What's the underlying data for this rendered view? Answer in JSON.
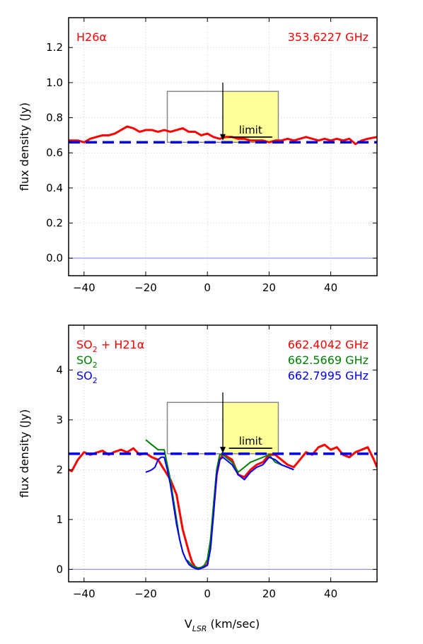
{
  "x_axis_label": "V",
  "x_axis_label_sub": "LSR",
  "x_axis_label_rest": " (km/sec)",
  "chart_data": [
    {
      "type": "line",
      "ylabel": "flux density (Jy)",
      "xlim": [
        -45,
        55
      ],
      "ylim": [
        -0.1,
        1.37
      ],
      "xticks": [
        -40,
        -20,
        0,
        20,
        40
      ],
      "xtick_labels": [
        "−40",
        "−20",
        "0",
        "20",
        "40"
      ],
      "yticks": [
        0.0,
        0.2,
        0.4,
        0.6,
        0.8,
        1.0,
        1.2
      ],
      "ytick_labels": [
        "0.0",
        "0.2",
        "0.4",
        "0.6",
        "0.8",
        "1.0",
        "1.2"
      ],
      "grid": true,
      "legend_left": [
        {
          "text": "H26α",
          "color": "#ff0000"
        }
      ],
      "legend_right": [
        {
          "text": "353.6227 GHz",
          "color": "#ff0000"
        }
      ],
      "baseline": 0.66,
      "zero_line": 0.0,
      "box": {
        "x": [
          -13,
          23
        ],
        "y": [
          0.66,
          0.95
        ]
      },
      "box_fill": {
        "x": [
          5,
          23
        ],
        "y": [
          0.66,
          0.95
        ],
        "color": "#ffff99"
      },
      "arrow": {
        "x": 5,
        "y_top": 1.0,
        "y_bottom": 0.67
      },
      "limit_label": "limit",
      "limit_line": {
        "x": [
          7,
          21
        ],
        "y": 0.69
      },
      "series": [
        {
          "color": "#ff0000",
          "width": 3,
          "x": [
            -45,
            -42,
            -40,
            -38,
            -36,
            -34,
            -32,
            -30,
            -28,
            -26,
            -24,
            -22,
            -20,
            -18,
            -16,
            -14,
            -12,
            -10,
            -8,
            -6,
            -4,
            -2,
            0,
            2,
            4,
            6,
            8,
            10,
            12,
            14,
            16,
            18,
            20,
            22,
            24,
            26,
            28,
            30,
            32,
            34,
            36,
            38,
            40,
            42,
            44,
            46,
            48,
            50,
            52,
            55
          ],
          "y": [
            0.67,
            0.67,
            0.66,
            0.68,
            0.69,
            0.7,
            0.7,
            0.71,
            0.73,
            0.75,
            0.74,
            0.72,
            0.73,
            0.73,
            0.72,
            0.73,
            0.72,
            0.73,
            0.74,
            0.72,
            0.72,
            0.7,
            0.71,
            0.69,
            0.68,
            0.69,
            0.69,
            0.68,
            0.68,
            0.67,
            0.67,
            0.67,
            0.66,
            0.67,
            0.67,
            0.68,
            0.67,
            0.68,
            0.69,
            0.68,
            0.67,
            0.68,
            0.67,
            0.68,
            0.67,
            0.68,
            0.65,
            0.67,
            0.68,
            0.69
          ]
        }
      ]
    },
    {
      "type": "line",
      "ylabel": "flux density (Jy)",
      "xlim": [
        -45,
        55
      ],
      "ylim": [
        -0.25,
        4.9
      ],
      "xticks": [
        -40,
        -20,
        0,
        20,
        40
      ],
      "xtick_labels": [
        "−40",
        "−20",
        "0",
        "20",
        "40"
      ],
      "yticks": [
        0,
        1,
        2,
        3,
        4
      ],
      "ytick_labels": [
        "0",
        "1",
        "2",
        "3",
        "4"
      ],
      "grid": true,
      "legend_left": [
        {
          "text": "SO",
          "sub": "2",
          "rest": " + H21α",
          "color": "#ff0000"
        },
        {
          "text": "SO",
          "sub": "2",
          "rest": "",
          "color": "#008000"
        },
        {
          "text": "SO",
          "sub": "2",
          "rest": "",
          "color": "#0000ff"
        }
      ],
      "legend_right": [
        {
          "text": "662.4042 GHz",
          "color": "#ff0000"
        },
        {
          "text": "662.5669 GHz",
          "color": "#008000"
        },
        {
          "text": "662.7995 GHz",
          "color": "#0000ff"
        }
      ],
      "baseline": 2.32,
      "zero_line": 0.0,
      "box": {
        "x": [
          -13,
          23
        ],
        "y": [
          2.32,
          3.35
        ]
      },
      "box_fill": {
        "x": [
          5,
          23
        ],
        "y": [
          2.32,
          3.35
        ],
        "color": "#ffff99"
      },
      "arrow": {
        "x": 5,
        "y_top": 3.55,
        "y_bottom": 2.33
      },
      "limit_label": "limit",
      "limit_line": {
        "x": [
          7,
          21
        ],
        "y": 2.43
      },
      "series": [
        {
          "color": "#ff0000",
          "width": 3,
          "x": [
            -45,
            -44,
            -42,
            -40,
            -38,
            -36,
            -34,
            -32,
            -30,
            -28,
            -26,
            -24,
            -22,
            -20,
            -18,
            -16,
            -14,
            -12,
            -10,
            -8,
            -6,
            -5,
            -4,
            -3,
            -2,
            -1,
            0,
            1,
            2,
            3,
            4,
            5,
            6,
            8,
            10,
            12,
            14,
            16,
            18,
            20,
            22,
            24,
            26,
            28,
            30,
            32,
            34,
            36,
            38,
            40,
            42,
            44,
            46,
            48,
            50,
            52,
            54,
            55
          ],
          "y": [
            2.0,
            1.97,
            2.2,
            2.35,
            2.3,
            2.34,
            2.38,
            2.3,
            2.36,
            2.4,
            2.35,
            2.43,
            2.3,
            2.33,
            2.25,
            2.2,
            2.0,
            1.8,
            1.5,
            0.8,
            0.35,
            0.15,
            0.05,
            0.02,
            0.03,
            0.05,
            0.1,
            0.5,
            1.2,
            1.9,
            2.2,
            2.3,
            2.28,
            2.2,
            1.9,
            1.85,
            2.0,
            2.1,
            2.15,
            2.3,
            2.3,
            2.2,
            2.1,
            2.05,
            2.2,
            2.35,
            2.3,
            2.45,
            2.5,
            2.4,
            2.45,
            2.3,
            2.25,
            2.35,
            2.4,
            2.45,
            2.2,
            2.05
          ]
        },
        {
          "color": "#008000",
          "width": 2,
          "x": [
            -20,
            -18,
            -16,
            -14,
            -13,
            -12,
            -11,
            -10,
            -9,
            -8,
            -7,
            -6,
            -5,
            -4,
            -3,
            -2,
            -1,
            0,
            1,
            2,
            3,
            4,
            5,
            6,
            8,
            10,
            12,
            14,
            16,
            18,
            20,
            22,
            24,
            26,
            28
          ],
          "y": [
            2.6,
            2.5,
            2.4,
            2.4,
            2.1,
            1.8,
            1.4,
            1.0,
            0.6,
            0.35,
            0.2,
            0.15,
            0.08,
            0.05,
            0.03,
            0.04,
            0.08,
            0.2,
            0.6,
            1.3,
            2.0,
            2.3,
            2.3,
            2.25,
            2.15,
            1.95,
            2.05,
            2.15,
            2.2,
            2.25,
            2.3,
            2.15,
            2.1,
            2.05,
            2.0
          ]
        },
        {
          "color": "#0000ff",
          "width": 2,
          "x": [
            -20,
            -19,
            -18,
            -17,
            -16,
            -15,
            -14,
            -13,
            -12,
            -11,
            -10,
            -9,
            -8,
            -7,
            -6,
            -5,
            -4,
            -3,
            -2,
            -1,
            0,
            1,
            2,
            3,
            4,
            5,
            6,
            8,
            10,
            12,
            14,
            16,
            18,
            20,
            22,
            24,
            26,
            28
          ],
          "y": [
            1.95,
            1.97,
            2.0,
            2.05,
            2.2,
            2.25,
            2.25,
            2.0,
            1.7,
            1.3,
            0.9,
            0.6,
            0.35,
            0.2,
            0.1,
            0.05,
            0.02,
            0.0,
            0.02,
            0.05,
            0.08,
            0.4,
            1.1,
            1.9,
            2.2,
            2.25,
            2.2,
            2.1,
            1.9,
            1.8,
            1.95,
            2.05,
            2.1,
            2.25,
            2.2,
            2.1,
            2.05,
            2.0
          ]
        }
      ]
    }
  ]
}
